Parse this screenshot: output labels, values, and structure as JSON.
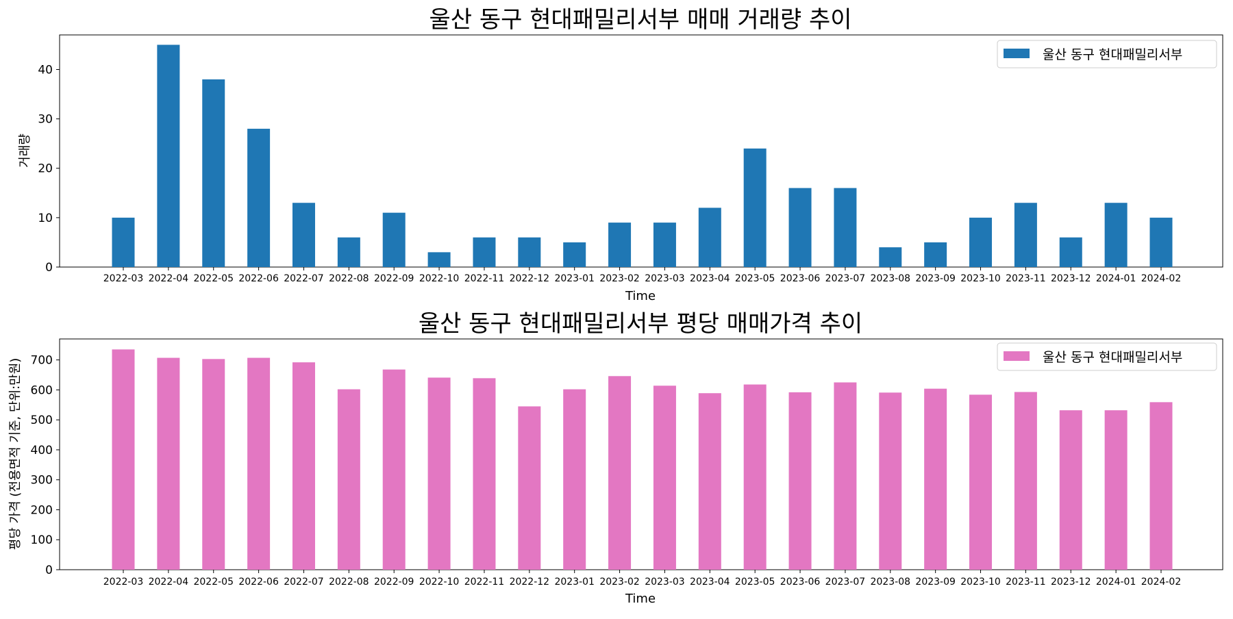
{
  "chart_data": [
    {
      "type": "bar",
      "title": "울산 동구 현대패밀리서부 매매 거래량 추이",
      "xlabel": "Time",
      "ylabel": "거래량",
      "ylim": [
        0,
        47
      ],
      "yticks": [
        0,
        10,
        20,
        30,
        40
      ],
      "grid": false,
      "legend_position": "top-right",
      "categories": [
        "2022-03",
        "2022-04",
        "2022-05",
        "2022-06",
        "2022-07",
        "2022-08",
        "2022-09",
        "2022-10",
        "2022-11",
        "2022-12",
        "2023-01",
        "2023-02",
        "2023-03",
        "2023-04",
        "2023-05",
        "2023-06",
        "2023-07",
        "2023-08",
        "2023-09",
        "2023-10",
        "2023-11",
        "2023-12",
        "2024-01",
        "2024-02"
      ],
      "series": [
        {
          "name": "울산 동구 현대패밀리서부",
          "color": "#1f77b4",
          "values": [
            10,
            45,
            38,
            28,
            13,
            6,
            11,
            3,
            6,
            6,
            5,
            9,
            9,
            12,
            24,
            16,
            16,
            4,
            5,
            10,
            13,
            6,
            13,
            10
          ]
        }
      ]
    },
    {
      "type": "bar",
      "title": "울산 동구 현대패밀리서부 평당 매매가격 추이",
      "xlabel": "Time",
      "ylabel": "평당 가격 (전용면적 기준, 단위:만원)",
      "ylim": [
        0,
        770
      ],
      "yticks": [
        0,
        100,
        200,
        300,
        400,
        500,
        600,
        700
      ],
      "grid": false,
      "legend_position": "top-right",
      "categories": [
        "2022-03",
        "2022-04",
        "2022-05",
        "2022-06",
        "2022-07",
        "2022-08",
        "2022-09",
        "2022-10",
        "2022-11",
        "2022-12",
        "2023-01",
        "2023-02",
        "2023-03",
        "2023-04",
        "2023-05",
        "2023-06",
        "2023-07",
        "2023-08",
        "2023-09",
        "2023-10",
        "2023-11",
        "2023-12",
        "2024-01",
        "2024-02"
      ],
      "series": [
        {
          "name": "울산 동구 현대패밀리서부",
          "color": "#e377c2",
          "values": [
            735,
            707,
            703,
            707,
            692,
            602,
            668,
            641,
            639,
            545,
            602,
            646,
            614,
            589,
            618,
            592,
            625,
            591,
            604,
            584,
            593,
            532,
            532,
            559
          ]
        }
      ]
    }
  ]
}
